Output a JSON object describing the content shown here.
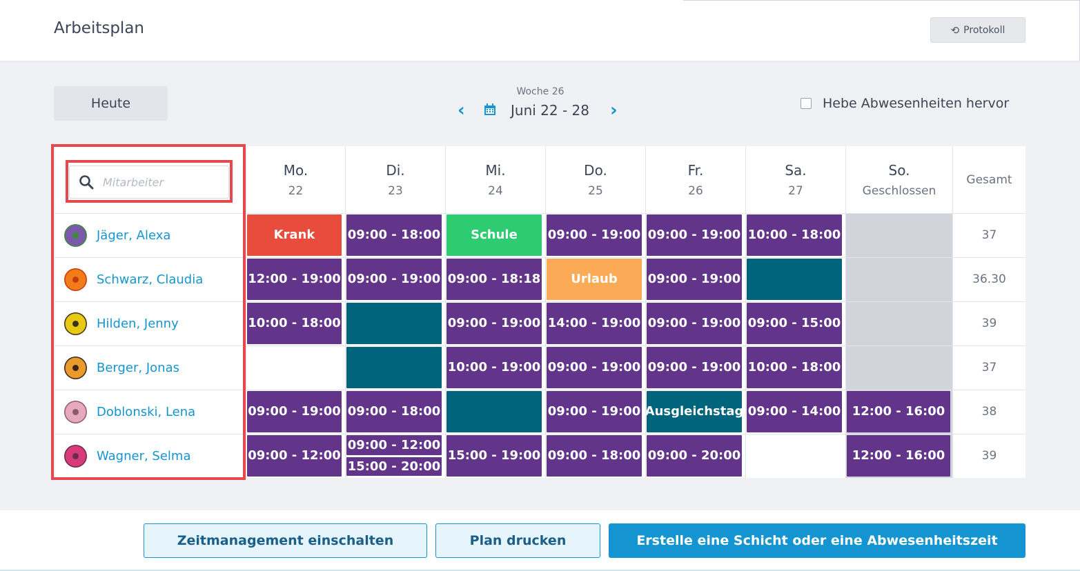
{
  "header": {
    "title": "Arbeitsplan",
    "protokoll_label": "Protokoll"
  },
  "toolbar": {
    "today_label": "Heute",
    "week_label": "Woche 26",
    "date_range": "Juni 22 - 28",
    "highlight_label": "Hebe Abwesenheiten hervor",
    "highlight_checked": false
  },
  "search": {
    "placeholder": "Mitarbeiter"
  },
  "days": [
    {
      "name": "Mo.",
      "sub": "22"
    },
    {
      "name": "Di.",
      "sub": "23"
    },
    {
      "name": "Mi.",
      "sub": "24"
    },
    {
      "name": "Do.",
      "sub": "25"
    },
    {
      "name": "Fr.",
      "sub": "26"
    },
    {
      "name": "Sa.",
      "sub": "27"
    },
    {
      "name": "So.",
      "sub": "Geschlossen"
    }
  ],
  "total_header": "Gesamt",
  "colors": {
    "shift": "#62358a",
    "krank": "#e74c3c",
    "schule": "#2ecc71",
    "urlaub": "#fbab55",
    "ausgleich": "#00647d",
    "closed": "#d1d5db",
    "accent": "#1495d1",
    "highlight_frame": "#e5484d"
  },
  "employees": [
    {
      "name": "Jäger, Alexa",
      "total": "37",
      "avatar": "avatar-purple-flower",
      "cells": [
        [
          "Krank"
        ],
        [
          "09:00 - 18:00"
        ],
        [
          "Schule"
        ],
        [
          "09:00 - 19:00"
        ],
        [
          "09:00 - 19:00"
        ],
        [
          "10:00 - 18:00"
        ],
        []
      ]
    },
    {
      "name": "Schwarz, Claudia",
      "total": "36.30",
      "avatar": "avatar-orange-flower",
      "cells": [
        [
          "12:00 - 19:00"
        ],
        [
          "09:00 - 19:00"
        ],
        [
          "09:00 - 18:18"
        ],
        [
          "Urlaub"
        ],
        [
          "09:00 - 19:00"
        ],
        [
          ""
        ],
        []
      ]
    },
    {
      "name": "Hilden, Jenny",
      "total": "39",
      "avatar": "avatar-yellow-flower",
      "cells": [
        [
          "10:00 - 18:00"
        ],
        [
          ""
        ],
        [
          "09:00 - 19:00"
        ],
        [
          "14:00 - 19:00"
        ],
        [
          "09:00 - 19:00"
        ],
        [
          "09:00 - 15:00"
        ],
        []
      ]
    },
    {
      "name": "Berger, Jonas",
      "total": "37",
      "avatar": "avatar-dark-flower",
      "cells": [
        [],
        [
          ""
        ],
        [
          "10:00 - 19:00"
        ],
        [
          "09:00 - 19:00"
        ],
        [
          "09:00 - 19:00"
        ],
        [
          "10:00 - 18:00"
        ],
        []
      ]
    },
    {
      "name": "Doblonski, Lena",
      "total": "38",
      "avatar": "avatar-pink-flower",
      "cells": [
        [
          "09:00 - 19:00"
        ],
        [
          "09:00 - 18:00"
        ],
        [
          ""
        ],
        [
          "09:00 - 19:00"
        ],
        [
          "Ausgleichstag"
        ],
        [
          "09:00 - 14:00"
        ],
        [
          "12:00 - 16:00"
        ]
      ]
    },
    {
      "name": "Wagner, Selma",
      "total": "39",
      "avatar": "avatar-magenta-flower",
      "cells": [
        [
          "09:00 - 12:00"
        ],
        [
          "09:00 - 12:00",
          "15:00 - 20:00"
        ],
        [
          "15:00 - 19:00"
        ],
        [
          "09:00 - 18:00"
        ],
        [
          "09:00 - 20:00"
        ],
        [],
        [
          "12:00 - 16:00"
        ]
      ]
    }
  ],
  "footer": {
    "time_mgmt_label": "Zeitmanagement einschalten",
    "print_label": "Plan drucken",
    "create_label": "Erstelle eine Schicht oder eine Abwesenheitszeit"
  }
}
